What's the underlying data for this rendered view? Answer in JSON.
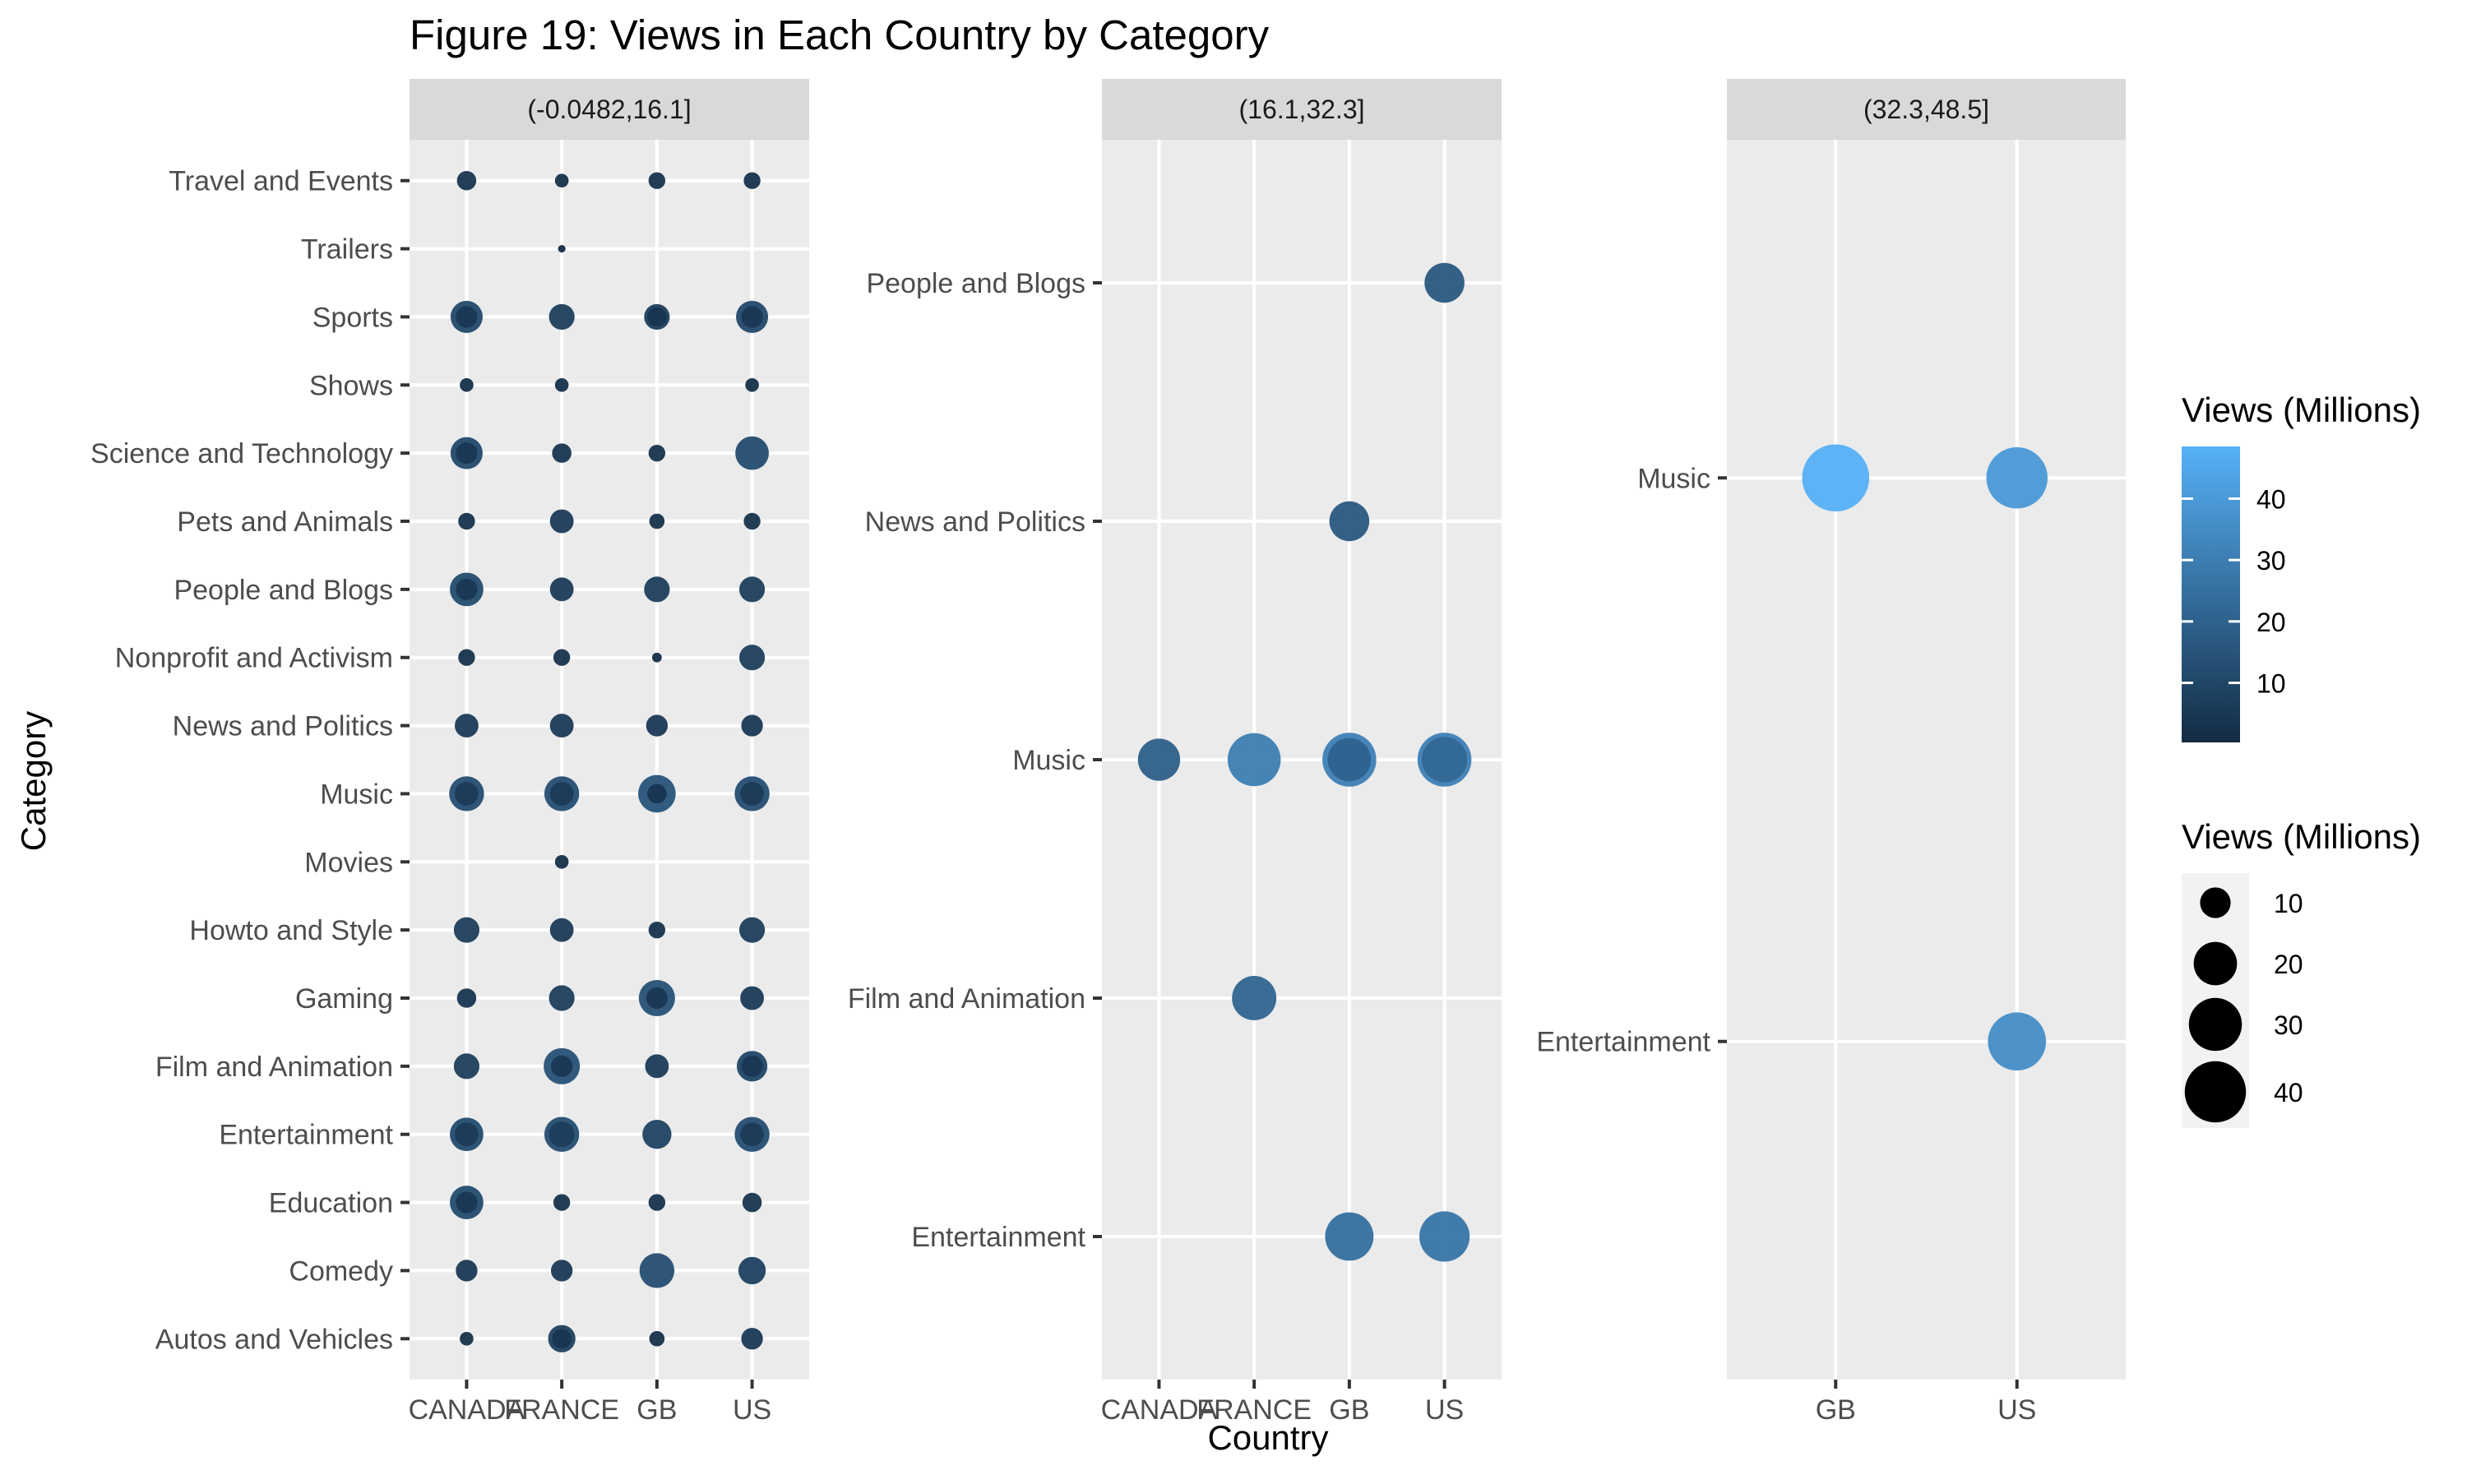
{
  "title": "Figure 19: Views in Each Country by Category",
  "legend": {
    "color_title": "Views (Millions)",
    "color_ticks": [
      "10",
      "20",
      "30",
      "40"
    ],
    "color_range": [
      0.3,
      48.5
    ],
    "color_low": "#132B43",
    "color_high": "#56B1F7",
    "size_title": "Views (Millions)",
    "size_ticks": [
      "10",
      "20",
      "30",
      "40"
    ]
  },
  "chart_data": {
    "type": "scatter",
    "title": "Figure 19: Views in Each Country by Category",
    "xlabel": "Country",
    "ylabel": "Category",
    "grid": true,
    "legend_position": "right",
    "facets": [
      {
        "label": "(-0.0482,16.1]",
        "x": [
          "CANADA",
          "FRANCE",
          "GB",
          "US"
        ],
        "categories": [
          "Autos and Vehicles",
          "Comedy",
          "Education",
          "Entertainment",
          "Film and Animation",
          "Gaming",
          "Howto and Style",
          "Movies",
          "Music",
          "News and Politics",
          "Nonprofit and Activism",
          "People and Blogs",
          "Pets and Animals",
          "Science and Technology",
          "Shows",
          "Sports",
          "Trailers",
          "Travel and Events"
        ],
        "points": [
          {
            "x": "CANADA",
            "y": "Travel and Events",
            "v": 4
          },
          {
            "x": "FRANCE",
            "y": "Travel and Events",
            "v": 2
          },
          {
            "x": "GB",
            "y": "Travel and Events",
            "v": 3
          },
          {
            "x": "US",
            "y": "Travel and Events",
            "v": 3
          },
          {
            "x": "FRANCE",
            "y": "Trailers",
            "v": 0.6
          },
          {
            "x": "CANADA",
            "y": "Sports",
            "v": 11
          },
          {
            "x": "CANADA",
            "y": "Sports",
            "v": 5
          },
          {
            "x": "FRANCE",
            "y": "Sports",
            "v": 7
          },
          {
            "x": "GB",
            "y": "Sports",
            "v": 7
          },
          {
            "x": "GB",
            "y": "Sports",
            "v": 4
          },
          {
            "x": "US",
            "y": "Sports",
            "v": 11
          },
          {
            "x": "US",
            "y": "Sports",
            "v": 5
          },
          {
            "x": "CANADA",
            "y": "Shows",
            "v": 2
          },
          {
            "x": "FRANCE",
            "y": "Shows",
            "v": 2
          },
          {
            "x": "US",
            "y": "Shows",
            "v": 2
          },
          {
            "x": "CANADA",
            "y": "Science and Technology",
            "v": 11
          },
          {
            "x": "CANADA",
            "y": "Science and Technology",
            "v": 5
          },
          {
            "x": "FRANCE",
            "y": "Science and Technology",
            "v": 4
          },
          {
            "x": "GB",
            "y": "Science and Technology",
            "v": 3
          },
          {
            "x": "US",
            "y": "Science and Technology",
            "v": 12
          },
          {
            "x": "CANADA",
            "y": "Pets and Animals",
            "v": 3
          },
          {
            "x": "FRANCE",
            "y": "Pets and Animals",
            "v": 6
          },
          {
            "x": "GB",
            "y": "Pets and Animals",
            "v": 2.5
          },
          {
            "x": "US",
            "y": "Pets and Animals",
            "v": 3
          },
          {
            "x": "CANADA",
            "y": "People and Blogs",
            "v": 12
          },
          {
            "x": "CANADA",
            "y": "People and Blogs",
            "v": 5
          },
          {
            "x": "FRANCE",
            "y": "People and Blogs",
            "v": 6
          },
          {
            "x": "GB",
            "y": "People and Blogs",
            "v": 7
          },
          {
            "x": "US",
            "y": "People and Blogs",
            "v": 7
          },
          {
            "x": "CANADA",
            "y": "Nonprofit and Activism",
            "v": 3
          },
          {
            "x": "FRANCE",
            "y": "Nonprofit and Activism",
            "v": 3
          },
          {
            "x": "GB",
            "y": "Nonprofit and Activism",
            "v": 1
          },
          {
            "x": "US",
            "y": "Nonprofit and Activism",
            "v": 7
          },
          {
            "x": "CANADA",
            "y": "News and Politics",
            "v": 6
          },
          {
            "x": "FRANCE",
            "y": "News and Politics",
            "v": 6
          },
          {
            "x": "GB",
            "y": "News and Politics",
            "v": 5
          },
          {
            "x": "US",
            "y": "News and Politics",
            "v": 5
          },
          {
            "x": "CANADA",
            "y": "Music",
            "v": 13
          },
          {
            "x": "CANADA",
            "y": "Music",
            "v": 6
          },
          {
            "x": "FRANCE",
            "y": "Music",
            "v": 13
          },
          {
            "x": "FRANCE",
            "y": "Music",
            "v": 6
          },
          {
            "x": "GB",
            "y": "Music",
            "v": 15
          },
          {
            "x": "GB",
            "y": "Music",
            "v": 4
          },
          {
            "x": "US",
            "y": "Music",
            "v": 13
          },
          {
            "x": "US",
            "y": "Music",
            "v": 6
          },
          {
            "x": "FRANCE",
            "y": "Movies",
            "v": 2
          },
          {
            "x": "CANADA",
            "y": "Howto and Style",
            "v": 7
          },
          {
            "x": "FRANCE",
            "y": "Howto and Style",
            "v": 6
          },
          {
            "x": "GB",
            "y": "Howto and Style",
            "v": 3
          },
          {
            "x": "US",
            "y": "Howto and Style",
            "v": 7
          },
          {
            "x": "CANADA",
            "y": "Gaming",
            "v": 4
          },
          {
            "x": "FRANCE",
            "y": "Gaming",
            "v": 7
          },
          {
            "x": "GB",
            "y": "Gaming",
            "v": 14
          },
          {
            "x": "GB",
            "y": "Gaming",
            "v": 5
          },
          {
            "x": "US",
            "y": "Gaming",
            "v": 6
          },
          {
            "x": "CANADA",
            "y": "Film and Animation",
            "v": 7
          },
          {
            "x": "FRANCE",
            "y": "Film and Animation",
            "v": 14
          },
          {
            "x": "FRANCE",
            "y": "Film and Animation",
            "v": 5
          },
          {
            "x": "GB",
            "y": "Film and Animation",
            "v": 6
          },
          {
            "x": "US",
            "y": "Film and Animation",
            "v": 10
          },
          {
            "x": "US",
            "y": "Film and Animation",
            "v": 5
          },
          {
            "x": "CANADA",
            "y": "Entertainment",
            "v": 12
          },
          {
            "x": "CANADA",
            "y": "Entertainment",
            "v": 6
          },
          {
            "x": "FRANCE",
            "y": "Entertainment",
            "v": 13
          },
          {
            "x": "FRANCE",
            "y": "Entertainment",
            "v": 7
          },
          {
            "x": "GB",
            "y": "Entertainment",
            "v": 9
          },
          {
            "x": "US",
            "y": "Entertainment",
            "v": 13
          },
          {
            "x": "US",
            "y": "Entertainment",
            "v": 6
          },
          {
            "x": "CANADA",
            "y": "Education",
            "v": 12
          },
          {
            "x": "CANADA",
            "y": "Education",
            "v": 5
          },
          {
            "x": "FRANCE",
            "y": "Education",
            "v": 3
          },
          {
            "x": "GB",
            "y": "Education",
            "v": 3
          },
          {
            "x": "US",
            "y": "Education",
            "v": 4
          },
          {
            "x": "CANADA",
            "y": "Comedy",
            "v": 5
          },
          {
            "x": "FRANCE",
            "y": "Comedy",
            "v": 5
          },
          {
            "x": "GB",
            "y": "Comedy",
            "v": 13
          },
          {
            "x": "US",
            "y": "Comedy",
            "v": 8
          },
          {
            "x": "CANADA",
            "y": "Autos and Vehicles",
            "v": 2
          },
          {
            "x": "FRANCE",
            "y": "Autos and Vehicles",
            "v": 8
          },
          {
            "x": "FRANCE",
            "y": "Autos and Vehicles",
            "v": 4
          },
          {
            "x": "GB",
            "y": "Autos and Vehicles",
            "v": 2.5
          },
          {
            "x": "US",
            "y": "Autos and Vehicles",
            "v": 5
          }
        ]
      },
      {
        "label": "(16.1,32.3]",
        "x": [
          "CANADA",
          "FRANCE",
          "GB",
          "US"
        ],
        "categories": [
          "Entertainment",
          "Film and Animation",
          "Music",
          "News and Politics",
          "People and Blogs"
        ],
        "points": [
          {
            "x": "US",
            "y": "People and Blogs",
            "v": 17
          },
          {
            "x": "GB",
            "y": "News and Politics",
            "v": 17
          },
          {
            "x": "CANADA",
            "y": "Music",
            "v": 19
          },
          {
            "x": "FRANCE",
            "y": "Music",
            "v": 30
          },
          {
            "x": "GB",
            "y": "Music",
            "v": 31
          },
          {
            "x": "GB",
            "y": "Music",
            "v": 20
          },
          {
            "x": "US",
            "y": "Music",
            "v": 31
          },
          {
            "x": "US",
            "y": "Music",
            "v": 22
          },
          {
            "x": "FRANCE",
            "y": "Film and Animation",
            "v": 21
          },
          {
            "x": "GB",
            "y": "Entertainment",
            "v": 25
          },
          {
            "x": "US",
            "y": "Entertainment",
            "v": 27
          }
        ]
      },
      {
        "label": "(32.3,48.5]",
        "x": [
          "GB",
          "US"
        ],
        "categories": [
          "Entertainment",
          "Music"
        ],
        "points": [
          {
            "x": "GB",
            "y": "Music",
            "v": 48
          },
          {
            "x": "US",
            "y": "Music",
            "v": 40
          },
          {
            "x": "US",
            "y": "Entertainment",
            "v": 36
          }
        ]
      }
    ]
  }
}
